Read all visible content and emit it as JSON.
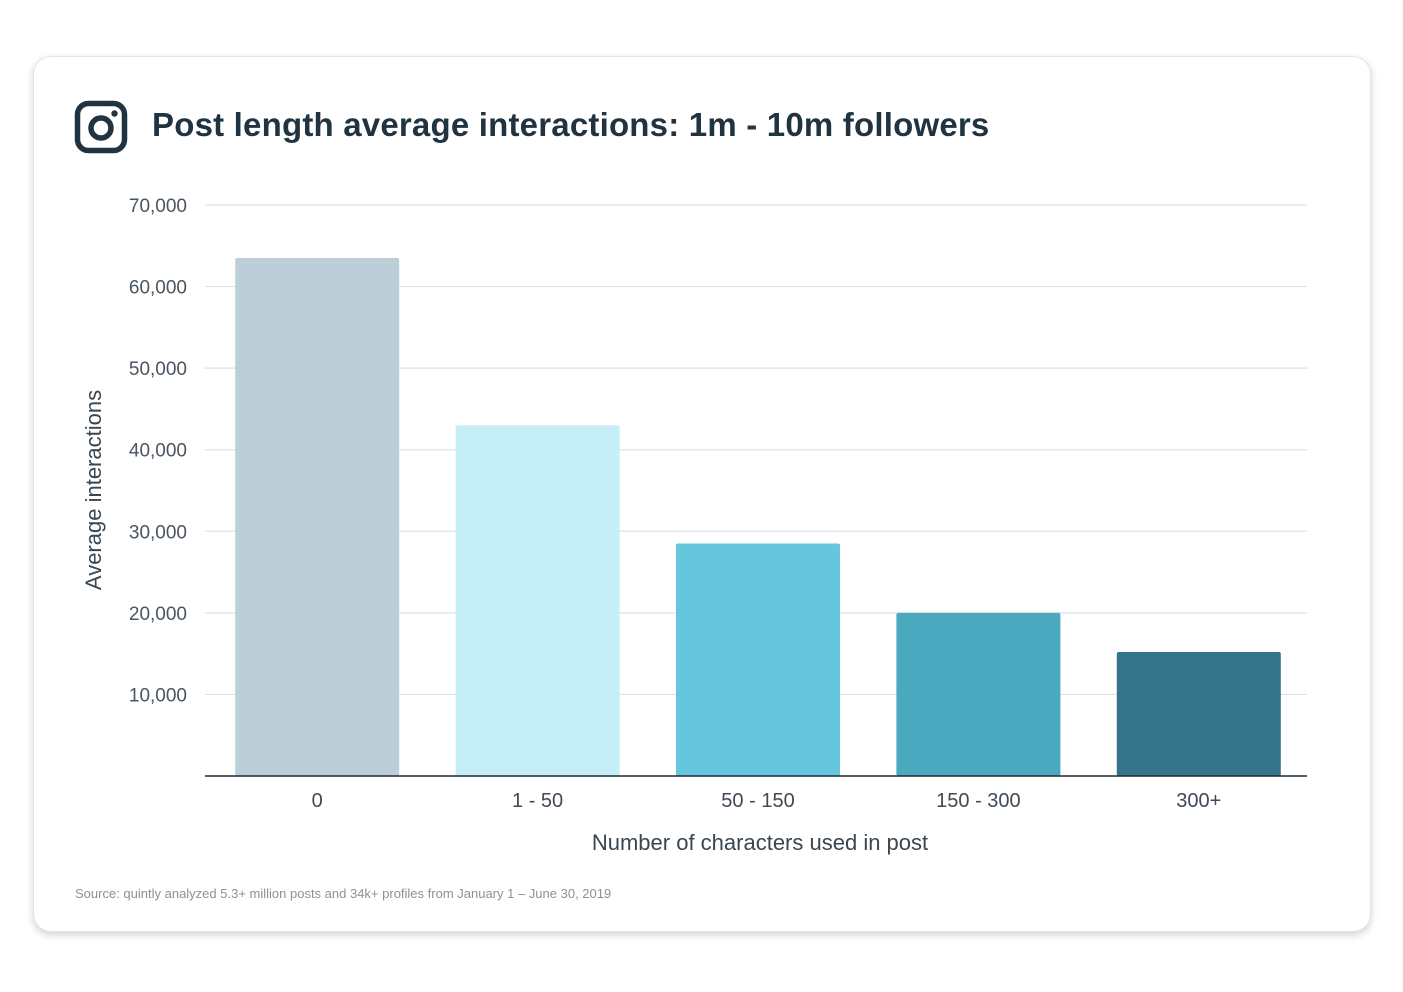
{
  "header": {
    "title": "Post length average interactions: 1m - 10m followers",
    "icon": "instagram-icon"
  },
  "colors": {
    "title": "#1f3340",
    "grid": "#dde2e6",
    "axis": "#1f2a33"
  },
  "chart_data": {
    "type": "bar",
    "title": "Post length average interactions: 1m - 10m followers",
    "xlabel": "Number of characters used in post",
    "ylabel": "Average interactions",
    "categories": [
      "0",
      "1 - 50",
      "50 - 150",
      "150 - 300",
      "300+"
    ],
    "values": [
      63500,
      43000,
      28500,
      20000,
      15200
    ],
    "bar_colors": [
      "#bccfd9",
      "#c5eef7",
      "#66c6de",
      "#4aa9be",
      "#347389"
    ],
    "ylim": [
      0,
      70000
    ],
    "yticks": [
      10000,
      20000,
      30000,
      40000,
      50000,
      60000,
      70000
    ],
    "ytick_labels": [
      "10,000",
      "20,000",
      "30,000",
      "40,000",
      "50,000",
      "60,000",
      "70,000"
    ],
    "grid": true
  },
  "footer": {
    "source": "Source: quintly analyzed 5.3+ million posts and 34k+ profiles from January 1 – June 30, 2019"
  }
}
